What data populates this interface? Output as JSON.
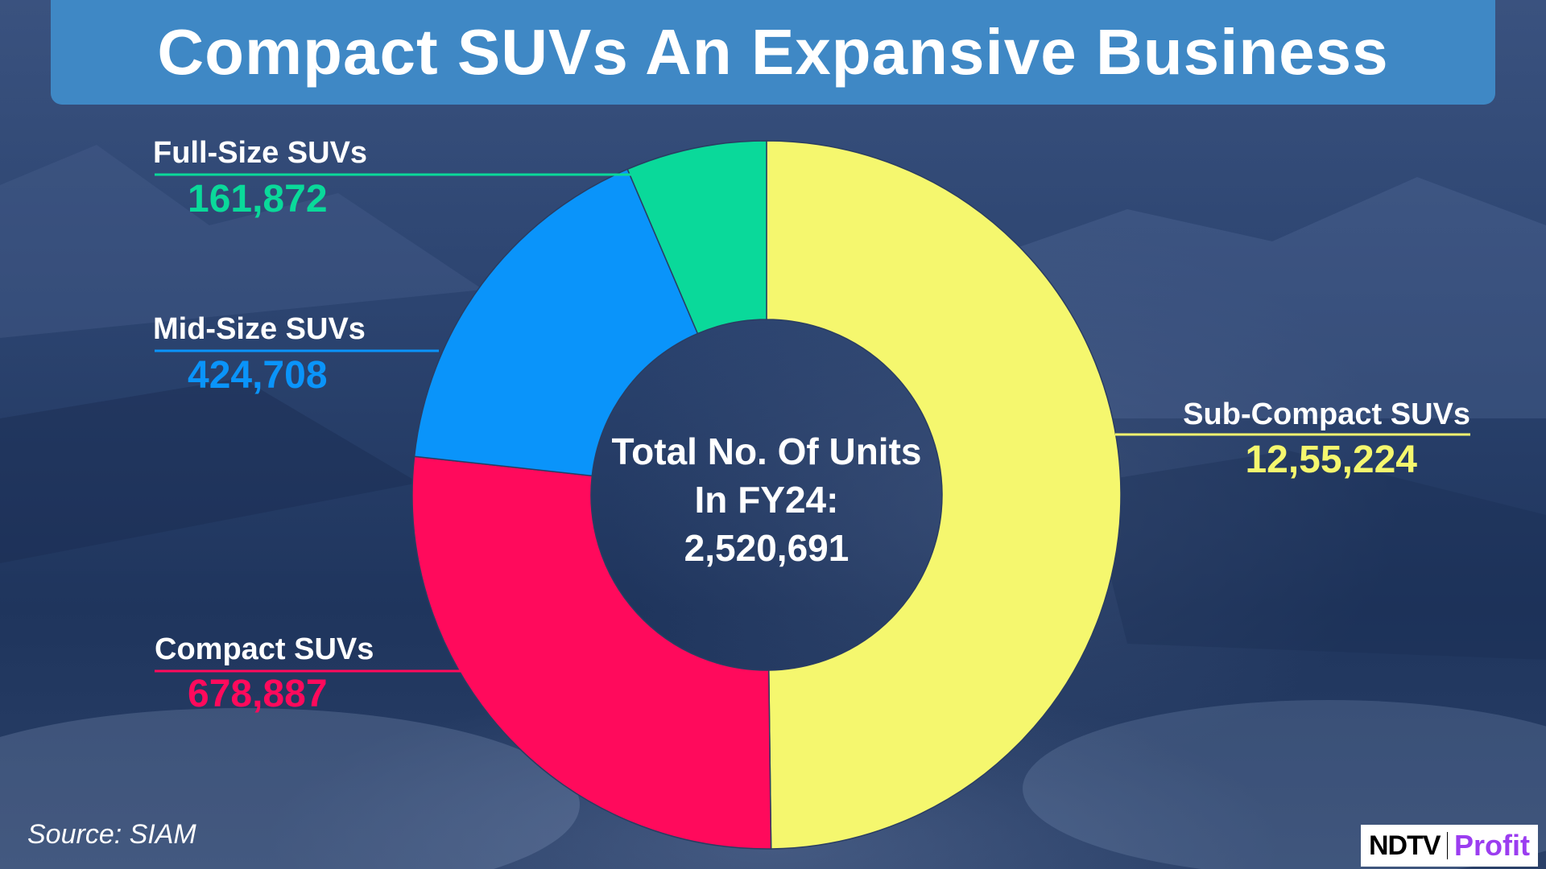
{
  "header": {
    "title": "Compact SUVs An Expansive Business"
  },
  "chart_data": {
    "type": "pie",
    "variant": "donut",
    "total_label_lines": [
      "Total No. Of Units",
      "In FY24:",
      "2,520,691"
    ],
    "categories": [
      "Sub-Compact SUVs",
      "Compact SUVs",
      "Mid-Size SUVs",
      "Full-Size SUVs"
    ],
    "values": [
      1255224,
      678887,
      424708,
      161872
    ],
    "value_labels": [
      "12,55,224",
      "678,887",
      "424,708",
      "161,872"
    ],
    "colors": [
      "#f5f76e",
      "#ff0a5c",
      "#0a94fa",
      "#0ad99a"
    ],
    "legend": "callout labels beside slices"
  },
  "footer": {
    "source": "Source: SIAM"
  },
  "logo": {
    "left": "NDTV",
    "right": "Profit"
  }
}
